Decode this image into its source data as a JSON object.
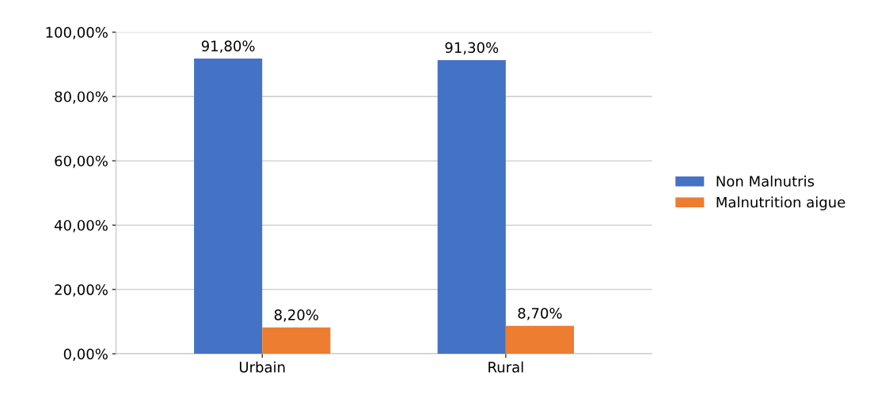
{
  "chart_data": {
    "type": "bar",
    "categories": [
      "Urbain",
      "Rural"
    ],
    "series": [
      {
        "name": "Non Malnutris",
        "color": "#4472c4",
        "values": [
          91.8,
          91.3
        ],
        "value_labels": [
          "91,80%",
          "91,30%"
        ]
      },
      {
        "name": "Malnutrition aigue",
        "color": "#ed7d31",
        "values": [
          8.2,
          8.7
        ],
        "value_labels": [
          "8,20%",
          "8,70%"
        ]
      }
    ],
    "ylim": [
      0,
      100
    ],
    "yticks": [
      {
        "value": 0,
        "label": "0,00%"
      },
      {
        "value": 20,
        "label": "20,00%"
      },
      {
        "value": 40,
        "label": "40,00%"
      },
      {
        "value": 60,
        "label": "60,00%"
      },
      {
        "value": 80,
        "label": "80,00%"
      },
      {
        "value": 100,
        "label": "100,00%"
      }
    ],
    "grid": "y",
    "legend": "right"
  }
}
